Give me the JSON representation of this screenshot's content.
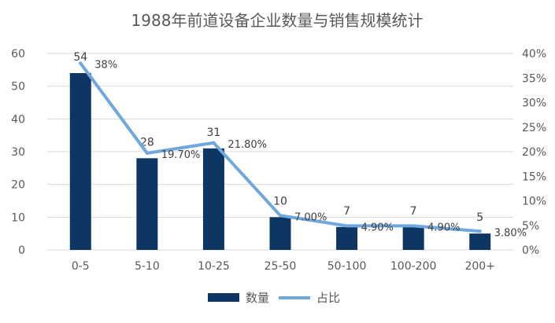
{
  "chart_data": {
    "type": "bar+line",
    "title": "1988年前道设备企业数量与销售规模统计",
    "categories": [
      "0-5",
      "5-10",
      "10-25",
      "25-50",
      "50-100",
      "100-200",
      "200+"
    ],
    "series": [
      {
        "name": "数量",
        "type": "bar",
        "axis": "left",
        "color": "#0d3663",
        "values": [
          54,
          28,
          31,
          10,
          7,
          7,
          5
        ],
        "labels": [
          "54",
          "28",
          "31",
          "10",
          "7",
          "7",
          "5"
        ]
      },
      {
        "name": "占比",
        "type": "line",
        "axis": "right",
        "color": "#6fa8dc",
        "values": [
          38,
          19.7,
          21.8,
          7.0,
          4.9,
          4.9,
          3.8
        ],
        "labels": [
          "38%",
          "19.70%",
          "21.80%",
          "7.00%",
          "4.90%",
          "4.90%",
          "3.80%"
        ]
      }
    ],
    "y_left": {
      "min": 0,
      "max": 60,
      "step": 10,
      "ticks": [
        "0",
        "10",
        "20",
        "30",
        "40",
        "50",
        "60"
      ]
    },
    "y_right": {
      "min": 0,
      "max": 40,
      "step": 5,
      "ticks": [
        "0%",
        "5%",
        "10%",
        "15%",
        "20%",
        "25%",
        "30%",
        "35%",
        "40%"
      ]
    },
    "grid": true,
    "legend_position": "bottom"
  }
}
